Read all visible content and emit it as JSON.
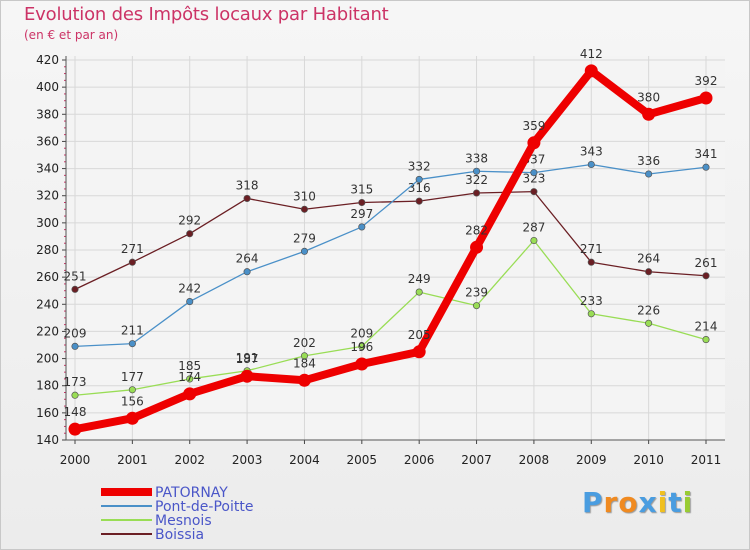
{
  "chart_data": {
    "type": "line",
    "title": "Evolution des Impôts locaux par Habitant",
    "subtitle": "(en € et par an)",
    "categories": [
      "2000",
      "2001",
      "2002",
      "2003",
      "2004",
      "2005",
      "2006",
      "2007",
      "2008",
      "2009",
      "2010",
      "2011"
    ],
    "ylim": [
      140,
      420
    ],
    "yticks": [
      140,
      160,
      180,
      200,
      220,
      240,
      260,
      280,
      300,
      320,
      340,
      360,
      380,
      400,
      420
    ],
    "series": [
      {
        "name": "Boissia",
        "color": "#6b1f24",
        "values": [
          251,
          271,
          292,
          318,
          310,
          315,
          316,
          322,
          323,
          271,
          264,
          261
        ]
      },
      {
        "name": "Mesnois",
        "color": "#99dd55",
        "values": [
          173,
          177,
          185,
          191,
          202,
          209,
          249,
          239,
          287,
          233,
          226,
          214
        ]
      },
      {
        "name": "Pont-de-Poitte",
        "color": "#4a90c8",
        "values": [
          209,
          211,
          242,
          264,
          279,
          297,
          332,
          338,
          337,
          343,
          336,
          341
        ]
      },
      {
        "name": "PATORNAY",
        "color": "#ee0000",
        "values": [
          148,
          156,
          174,
          187,
          184,
          196,
          205,
          282,
          359,
          412,
          380,
          392
        ]
      }
    ],
    "legend": [
      "PATORNAY",
      "Pont-de-Poitte",
      "Mesnois",
      "Boissia"
    ]
  },
  "logo": {
    "letters": [
      "P",
      "r",
      "o",
      "x",
      "i",
      "t",
      "i"
    ],
    "colors": [
      "#4a9de0",
      "#f08a20",
      "#f08a20",
      "#4a9de0",
      "#f0c020",
      "#4a9de0",
      "#99cc33"
    ]
  }
}
